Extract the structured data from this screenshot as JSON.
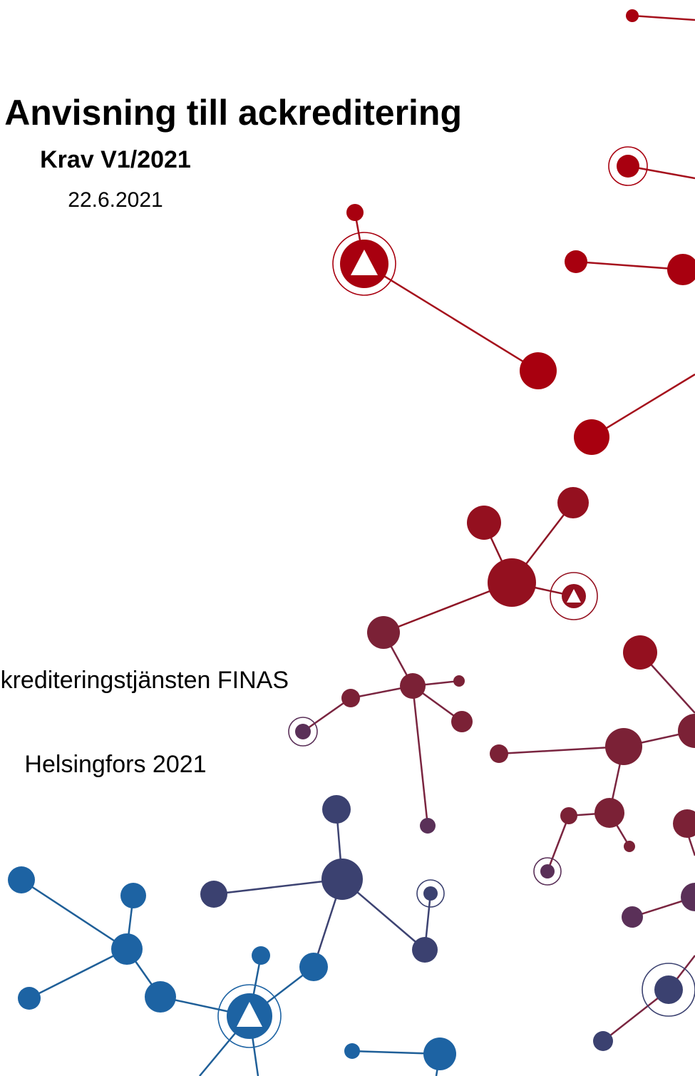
{
  "header": {
    "title": "Anvisning till ackreditering",
    "subtitle": "Krav V1/2021",
    "date": "22.6.2021"
  },
  "footer": {
    "organization": "Ackrediteringstjänsten FINAS",
    "place": "Helsingfors 2021"
  }
}
